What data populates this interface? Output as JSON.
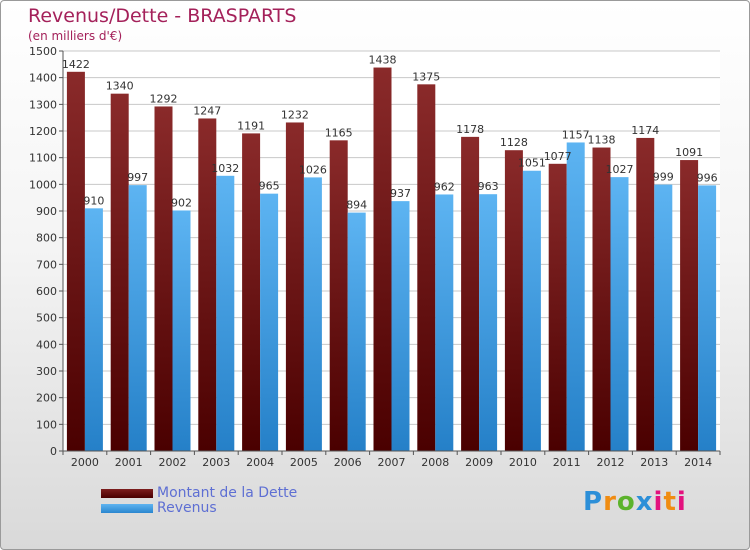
{
  "title": "Revenus/Dette - BRASPARTS",
  "subtitle": "(en milliers d'€)",
  "colors": {
    "debt": "#5a0a0a",
    "revenue": "#3aa0e8",
    "title": "#a4215a",
    "legend_text": "#5e6fd3"
  },
  "chart_data": {
    "type": "bar",
    "title": "Revenus/Dette - BRASPARTS",
    "ylabel": "(en milliers d'€)",
    "xlabel": "",
    "ylim": [
      0,
      1500
    ],
    "yticks": [
      0,
      100,
      200,
      300,
      400,
      500,
      600,
      700,
      800,
      900,
      1000,
      1100,
      1200,
      1300,
      1400,
      1500
    ],
    "categories": [
      "2000",
      "2001",
      "2002",
      "2003",
      "2004",
      "2005",
      "2006",
      "2007",
      "2008",
      "2009",
      "2010",
      "2011",
      "2012",
      "2013",
      "2014"
    ],
    "series": [
      {
        "name": "Montant de la Dette",
        "values": [
          1422,
          1340,
          1292,
          1247,
          1191,
          1232,
          1165,
          1438,
          1375,
          1178,
          1128,
          1077,
          1138,
          1174,
          1091
        ]
      },
      {
        "name": "Revenus",
        "values": [
          910,
          997,
          902,
          1032,
          965,
          1026,
          894,
          937,
          962,
          963,
          1051,
          1157,
          1027,
          999,
          996
        ]
      }
    ],
    "grid": true,
    "legend": "bottom-left"
  },
  "legend": {
    "debt_label": "Montant de la Dette",
    "revenue_label": "Revenus"
  },
  "logo_text": "Proxiti"
}
